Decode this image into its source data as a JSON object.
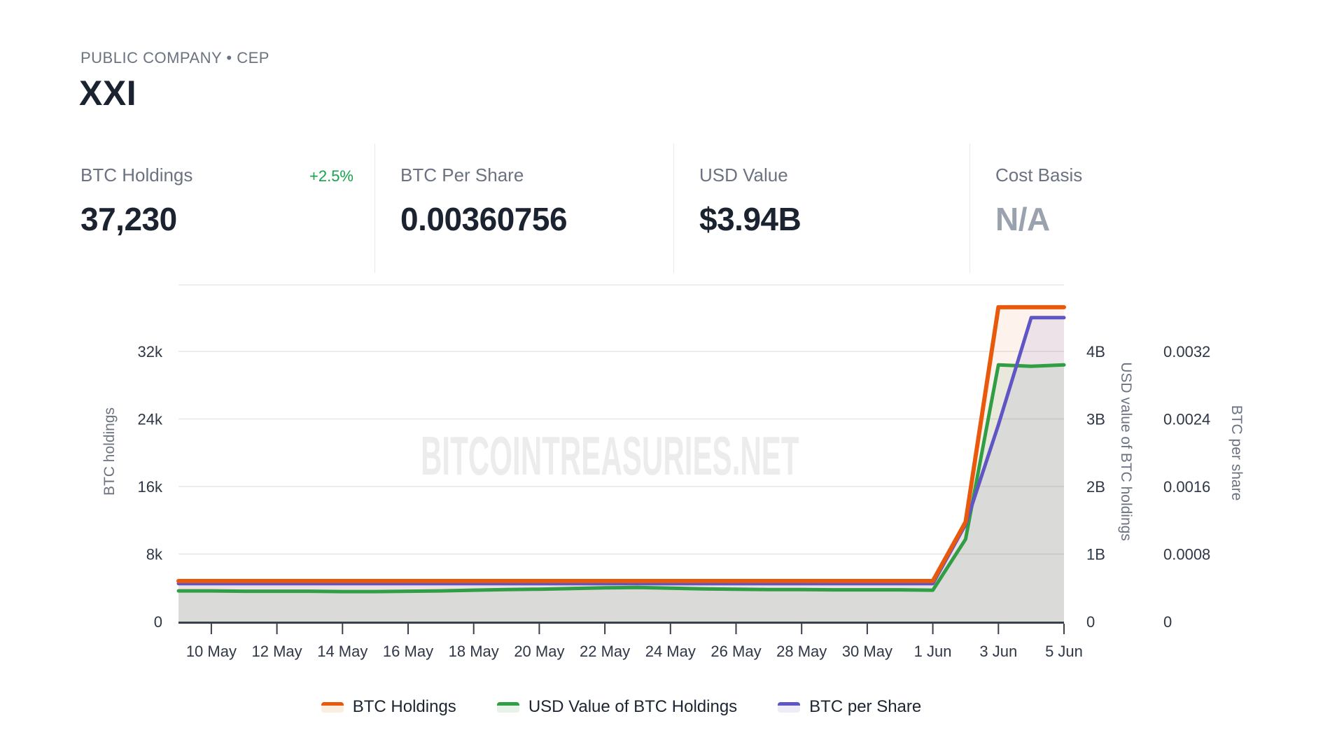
{
  "header": {
    "category_line": "PUBLIC COMPANY • CEP",
    "title": "XXI"
  },
  "stats": [
    {
      "label": "BTC Holdings",
      "change": "+2.5%",
      "value": "37,230"
    },
    {
      "label": "BTC Per Share",
      "value": "0.00360756"
    },
    {
      "label": "USD Value",
      "value": "$3.94B"
    },
    {
      "label": "Cost Basis",
      "value": "N/A"
    }
  ],
  "colors": {
    "positive_change": "#17a24c",
    "btc_holdings_line": "#e8590c",
    "usd_value_line": "#2f9e44",
    "btc_per_share_line": "#5f55c5"
  },
  "watermark": "BITCOINTREASURIES.NET",
  "chart_data": {
    "type": "area",
    "title": "",
    "grid": "horizontal",
    "legend_position": "bottom",
    "x": [
      "9 May",
      "10 May",
      "11 May",
      "12 May",
      "13 May",
      "14 May",
      "15 May",
      "16 May",
      "17 May",
      "18 May",
      "19 May",
      "20 May",
      "21 May",
      "22 May",
      "23 May",
      "24 May",
      "25 May",
      "26 May",
      "27 May",
      "28 May",
      "29 May",
      "30 May",
      "31 May",
      "1 Jun",
      "2 Jun",
      "3 Jun",
      "4 Jun",
      "5 Jun"
    ],
    "x_tick_labels": [
      "10 May",
      "12 May",
      "14 May",
      "16 May",
      "18 May",
      "20 May",
      "22 May",
      "24 May",
      "26 May",
      "28 May",
      "30 May",
      "1 Jun",
      "3 Jun",
      "5 Jun"
    ],
    "series": [
      {
        "name": "BTC Holdings",
        "axis": "left",
        "color": "#e8590c",
        "fill": "rgba(232,89,12,0.08)",
        "legend_fill": "#faeee1",
        "line_width": 6,
        "values": [
          4812,
          4812,
          4812,
          4812,
          4812,
          4812,
          4812,
          4812,
          4812,
          4812,
          4812,
          4812,
          4812,
          4812,
          4812,
          4812,
          4812,
          4812,
          4812,
          4812,
          4812,
          4812,
          4812,
          4812,
          11800,
          37230,
          37230,
          37230
        ]
      },
      {
        "name": "USD Value of BTC Holdings",
        "axis": "right_usd",
        "color": "#2f9e44",
        "fill": "rgba(47,158,68,0.10)",
        "legend_fill": "#e7f2e9",
        "line_width": 5,
        "values_unit": "billions USD",
        "values": [
          0.455,
          0.455,
          0.45,
          0.45,
          0.45,
          0.445,
          0.445,
          0.45,
          0.455,
          0.465,
          0.475,
          0.48,
          0.49,
          0.5,
          0.505,
          0.495,
          0.485,
          0.48,
          0.475,
          0.475,
          0.47,
          0.47,
          0.47,
          0.465,
          1.22,
          3.8,
          3.78,
          3.8
        ]
      },
      {
        "name": "BTC per Share",
        "axis": "right_share",
        "color": "#5f55c5",
        "fill": "rgba(95,85,197,0.10)",
        "legend_fill": "#edecf7",
        "line_width": 5,
        "values": [
          0.00045,
          0.00045,
          0.00045,
          0.00045,
          0.00045,
          0.00045,
          0.00045,
          0.00045,
          0.00045,
          0.00045,
          0.00045,
          0.00045,
          0.00045,
          0.00045,
          0.00045,
          0.00045,
          0.00045,
          0.00045,
          0.00045,
          0.00045,
          0.00045,
          0.00045,
          0.00045,
          0.00045,
          0.00115,
          0.00233,
          0.0036,
          0.0036
        ]
      }
    ],
    "axes": {
      "left": {
        "title": "BTC holdings",
        "ticks": [
          "0",
          "8k",
          "16k",
          "24k",
          "32k"
        ],
        "per_grid": 8000,
        "range": [
          0,
          40000
        ]
      },
      "right_usd": {
        "title": "USD value of BTC holdings",
        "ticks": [
          "0",
          "1B",
          "2B",
          "3B",
          "4B"
        ],
        "per_grid": 1,
        "range": [
          0,
          5
        ],
        "unit": "billions USD"
      },
      "right_share": {
        "title": "BTC per share",
        "ticks": [
          "0",
          "0.0008",
          "0.0016",
          "0.0024",
          "0.0032"
        ],
        "per_grid": 0.0008,
        "range": [
          0,
          0.004
        ]
      }
    }
  }
}
